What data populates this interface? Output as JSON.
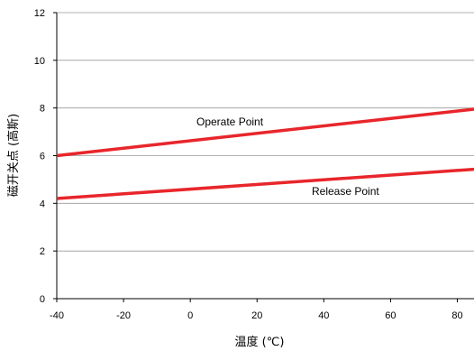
{
  "chart_data": {
    "type": "line",
    "xlabel": "温度 (℃)",
    "ylabel": "磁开关点 (高斯)",
    "xlim": [
      -40,
      85
    ],
    "ylim": [
      0,
      12
    ],
    "xticks": [
      -40,
      -20,
      0,
      20,
      40,
      60,
      80
    ],
    "yticks": [
      0,
      2,
      4,
      6,
      8,
      10,
      12
    ],
    "grid": "horizontal",
    "colors": {
      "series": "#e8262b",
      "grid": "#999999",
      "axis": "#000000"
    },
    "series": [
      {
        "name": "Operate Point",
        "x": [
          -40,
          85
        ],
        "y": [
          6.0,
          7.95
        ]
      },
      {
        "name": "Release Point",
        "x": [
          -40,
          85
        ],
        "y": [
          4.2,
          5.43
        ]
      }
    ],
    "annotations": [
      {
        "text": "Operate Point",
        "series": 0
      },
      {
        "text": "Release Point",
        "series": 1
      }
    ]
  }
}
